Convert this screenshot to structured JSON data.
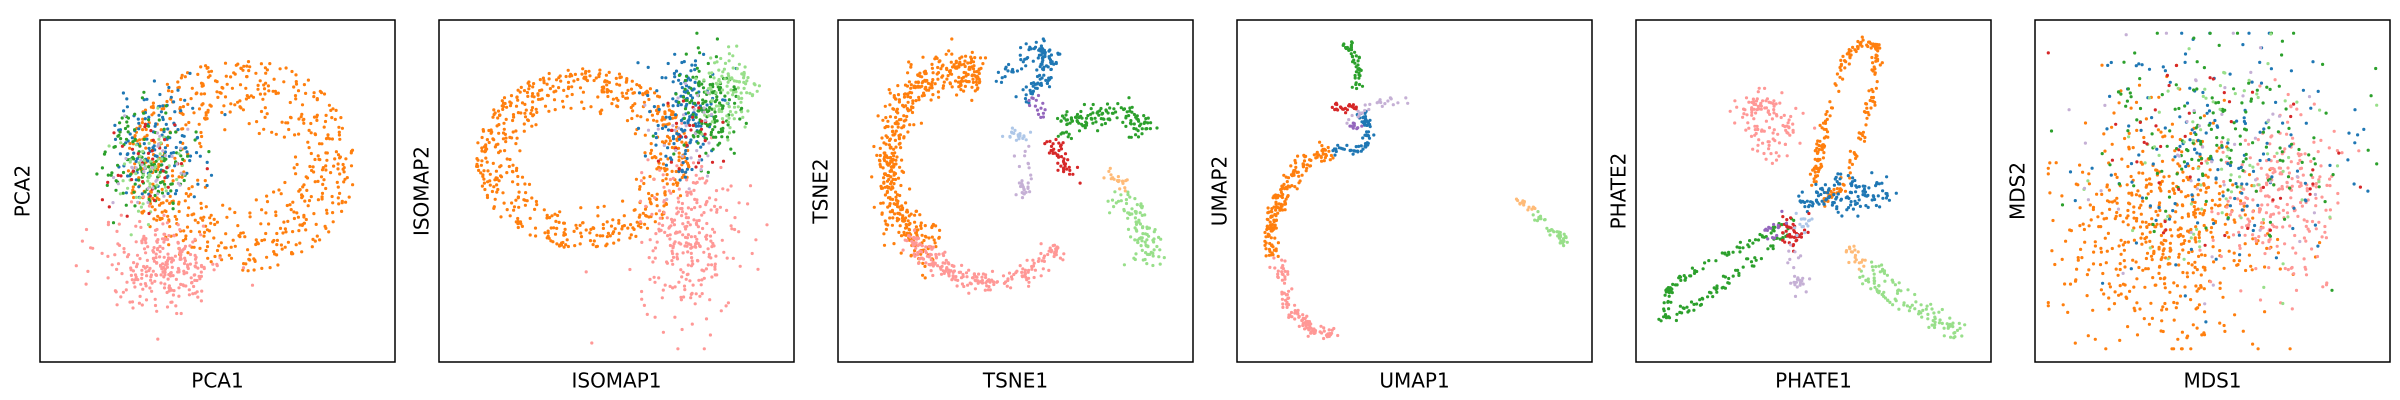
{
  "palette": {
    "orange": "#ff7f0e",
    "pink": "#ff9896",
    "blue": "#1f77b4",
    "green": "#2ca02c",
    "light_green": "#98df8a",
    "red": "#d62728",
    "lavender": "#c5b0d5",
    "purple": "#9467bd",
    "peach": "#ffbb78",
    "light_blue": "#aec7e8"
  },
  "chart_data": [
    {
      "type": "scatter",
      "xlabel": "PCA1",
      "ylabel": "PCA2",
      "grid": false,
      "ticks": false,
      "clusters": [
        {
          "color": "orange",
          "shape": "ring",
          "cx": 0.57,
          "cy": 0.58,
          "rx": 0.34,
          "ry": 0.33,
          "inner": 0.32,
          "n": 1200
        },
        {
          "color": "pink",
          "shape": "blob",
          "cx": 0.34,
          "cy": 0.27,
          "rx": 0.18,
          "ry": 0.14,
          "n": 550
        },
        {
          "color": "blue",
          "shape": "blob",
          "cx": 0.32,
          "cy": 0.65,
          "rx": 0.14,
          "ry": 0.17,
          "n": 260
        },
        {
          "color": "green",
          "shape": "blob",
          "cx": 0.29,
          "cy": 0.6,
          "rx": 0.13,
          "ry": 0.16,
          "n": 260
        },
        {
          "color": "light_green",
          "shape": "blob",
          "cx": 0.3,
          "cy": 0.56,
          "rx": 0.12,
          "ry": 0.14,
          "n": 110
        },
        {
          "color": "red",
          "shape": "blob",
          "cx": 0.3,
          "cy": 0.58,
          "rx": 0.13,
          "ry": 0.16,
          "n": 70
        },
        {
          "color": "lavender",
          "shape": "blob",
          "cx": 0.3,
          "cy": 0.55,
          "rx": 0.12,
          "ry": 0.15,
          "n": 70
        }
      ]
    },
    {
      "type": "scatter",
      "xlabel": "ISOMAP1",
      "ylabel": "ISOMAP2",
      "grid": false,
      "ticks": false,
      "clusters": [
        {
          "color": "orange",
          "shape": "ring",
          "cx": 0.4,
          "cy": 0.6,
          "rx": 0.32,
          "ry": 0.28,
          "inner": 0.5,
          "n": 1200
        },
        {
          "color": "pink",
          "shape": "blob",
          "cx": 0.72,
          "cy": 0.35,
          "rx": 0.15,
          "ry": 0.23,
          "n": 550
        },
        {
          "color": "blue",
          "shape": "blob",
          "cx": 0.7,
          "cy": 0.74,
          "rx": 0.1,
          "ry": 0.2,
          "n": 300
        },
        {
          "color": "green",
          "shape": "blob",
          "cx": 0.77,
          "cy": 0.76,
          "rx": 0.1,
          "ry": 0.18,
          "n": 300
        },
        {
          "color": "light_green",
          "shape": "blob",
          "cx": 0.84,
          "cy": 0.8,
          "rx": 0.09,
          "ry": 0.14,
          "n": 220
        },
        {
          "color": "red",
          "shape": "blob",
          "cx": 0.7,
          "cy": 0.68,
          "rx": 0.09,
          "ry": 0.15,
          "n": 60
        },
        {
          "color": "lavender",
          "shape": "blob",
          "cx": 0.72,
          "cy": 0.66,
          "rx": 0.1,
          "ry": 0.16,
          "n": 60
        }
      ]
    },
    {
      "type": "scatter",
      "xlabel": "TSNE1",
      "ylabel": "TSNE2",
      "grid": false,
      "ticks": false,
      "clusters": [
        {
          "color": "orange",
          "shape": "arc",
          "cx": 0.33,
          "cy": 0.58,
          "rx": 0.21,
          "ry": 0.3,
          "from": 70,
          "to": 250,
          "thick": 0.12,
          "n": 1000
        },
        {
          "color": "pink",
          "shape": "arc",
          "cx": 0.42,
          "cy": 0.52,
          "rx": 0.27,
          "ry": 0.3,
          "from": 210,
          "to": 320,
          "thick": 0.06,
          "n": 450
        },
        {
          "color": "blue",
          "shape": "path",
          "points": [
            [
              0.45,
              0.84
            ],
            [
              0.52,
              0.9
            ],
            [
              0.58,
              0.95
            ],
            [
              0.6,
              0.9
            ],
            [
              0.58,
              0.84
            ],
            [
              0.53,
              0.8
            ]
          ],
          "spread": 0.015,
          "n": 240
        },
        {
          "color": "green",
          "shape": "path",
          "points": [
            [
              0.63,
              0.7
            ],
            [
              0.7,
              0.73
            ],
            [
              0.78,
              0.74
            ],
            [
              0.86,
              0.72
            ],
            [
              0.91,
              0.69
            ]
          ],
          "spread": 0.02,
          "n": 260
        },
        {
          "color": "light_green",
          "shape": "path",
          "points": [
            [
              0.82,
              0.48
            ],
            [
              0.86,
              0.42
            ],
            [
              0.89,
              0.35
            ],
            [
              0.9,
              0.3
            ]
          ],
          "spread": 0.022,
          "n": 200
        },
        {
          "color": "peach",
          "shape": "path",
          "points": [
            [
              0.78,
              0.55
            ],
            [
              0.83,
              0.52
            ]
          ],
          "spread": 0.012,
          "n": 40
        },
        {
          "color": "red",
          "shape": "path",
          "points": [
            [
              0.6,
              0.65
            ],
            [
              0.64,
              0.6
            ],
            [
              0.67,
              0.55
            ]
          ],
          "spread": 0.015,
          "n": 90
        },
        {
          "color": "lavender",
          "shape": "path",
          "points": [
            [
              0.53,
              0.62
            ],
            [
              0.53,
              0.53
            ],
            [
              0.52,
              0.48
            ]
          ],
          "spread": 0.012,
          "n": 60
        },
        {
          "color": "light_blue",
          "shape": "path",
          "points": [
            [
              0.48,
              0.68
            ],
            [
              0.53,
              0.66
            ]
          ],
          "spread": 0.012,
          "n": 40
        },
        {
          "color": "purple",
          "shape": "path",
          "points": [
            [
              0.55,
              0.78
            ],
            [
              0.58,
              0.78
            ],
            [
              0.57,
              0.72
            ]
          ],
          "spread": 0.01,
          "n": 30
        }
      ]
    },
    {
      "type": "scatter",
      "xlabel": "UMAP1",
      "ylabel": "UMAP2",
      "grid": false,
      "ticks": false,
      "clusters": [
        {
          "color": "orange",
          "shape": "path",
          "points": [
            [
              0.25,
              0.63
            ],
            [
              0.16,
              0.58
            ],
            [
              0.1,
              0.48
            ],
            [
              0.07,
              0.4
            ],
            [
              0.07,
              0.31
            ]
          ],
          "spread": 0.013,
          "n": 380
        },
        {
          "color": "pink",
          "shape": "path",
          "points": [
            [
              0.09,
              0.28
            ],
            [
              0.12,
              0.15
            ],
            [
              0.18,
              0.08
            ],
            [
              0.26,
              0.05
            ]
          ],
          "spread": 0.012,
          "n": 220
        },
        {
          "color": "blue",
          "shape": "path",
          "points": [
            [
              0.26,
              0.63
            ],
            [
              0.35,
              0.63
            ],
            [
              0.36,
              0.7
            ],
            [
              0.34,
              0.75
            ]
          ],
          "spread": 0.008,
          "n": 140
        },
        {
          "color": "green",
          "shape": "path",
          "points": [
            [
              0.3,
              0.96
            ],
            [
              0.33,
              0.9
            ],
            [
              0.33,
              0.82
            ]
          ],
          "spread": 0.008,
          "n": 90
        },
        {
          "color": "red",
          "shape": "path",
          "points": [
            [
              0.25,
              0.76
            ],
            [
              0.32,
              0.76
            ]
          ],
          "spread": 0.008,
          "n": 50
        },
        {
          "color": "lavender",
          "shape": "path",
          "points": [
            [
              0.3,
              0.72
            ],
            [
              0.38,
              0.77
            ],
            [
              0.48,
              0.78
            ]
          ],
          "spread": 0.007,
          "n": 50
        },
        {
          "color": "purple",
          "shape": "path",
          "points": [
            [
              0.31,
              0.71
            ],
            [
              0.34,
              0.7
            ]
          ],
          "spread": 0.006,
          "n": 20
        },
        {
          "color": "peach",
          "shape": "path",
          "points": [
            [
              0.81,
              0.47
            ],
            [
              0.86,
              0.44
            ]
          ],
          "spread": 0.006,
          "n": 30
        },
        {
          "color": "light_green",
          "shape": "path",
          "points": [
            [
              0.86,
              0.44
            ],
            [
              0.92,
              0.37
            ],
            [
              0.95,
              0.34
            ]
          ],
          "spread": 0.008,
          "n": 80
        }
      ]
    },
    {
      "type": "scatter",
      "xlabel": "PHATE1",
      "ylabel": "PHATE2",
      "grid": false,
      "ticks": false,
      "clusters": [
        {
          "color": "orange",
          "shape": "path",
          "points": [
            [
              0.5,
              0.52
            ],
            [
              0.52,
              0.63
            ],
            [
              0.55,
              0.76
            ],
            [
              0.59,
              0.9
            ],
            [
              0.64,
              0.96
            ],
            [
              0.69,
              0.95
            ],
            [
              0.68,
              0.82
            ],
            [
              0.64,
              0.66
            ],
            [
              0.59,
              0.52
            ],
            [
              0.54,
              0.47
            ]
          ],
          "spread": 0.008,
          "n": 420
        },
        {
          "color": "pink",
          "shape": "path",
          "points": [
            [
              0.41,
              0.6
            ],
            [
              0.35,
              0.66
            ],
            [
              0.3,
              0.75
            ],
            [
              0.33,
              0.78
            ],
            [
              0.41,
              0.73
            ],
            [
              0.45,
              0.66
            ]
          ],
          "spread": 0.02,
          "n": 240
        },
        {
          "color": "blue",
          "shape": "path",
          "points": [
            [
              0.46,
              0.46
            ],
            [
              0.55,
              0.47
            ],
            [
              0.63,
              0.46
            ],
            [
              0.71,
              0.5
            ],
            [
              0.61,
              0.53
            ],
            [
              0.52,
              0.5
            ]
          ],
          "spread": 0.018,
          "n": 260
        },
        {
          "color": "green",
          "shape": "path",
          "points": [
            [
              0.44,
              0.42
            ],
            [
              0.31,
              0.34
            ],
            [
              0.17,
              0.27
            ],
            [
              0.07,
              0.2
            ],
            [
              0.05,
              0.1
            ],
            [
              0.16,
              0.15
            ],
            [
              0.3,
              0.27
            ],
            [
              0.43,
              0.38
            ]
          ],
          "spread": 0.008,
          "n": 300
        },
        {
          "color": "light_green",
          "shape": "path",
          "points": [
            [
              0.64,
              0.25
            ],
            [
              0.72,
              0.17
            ],
            [
              0.83,
              0.1
            ],
            [
              0.94,
              0.06
            ],
            [
              0.86,
              0.12
            ],
            [
              0.75,
              0.2
            ],
            [
              0.67,
              0.28
            ]
          ],
          "spread": 0.012,
          "n": 230
        },
        {
          "color": "peach",
          "shape": "path",
          "points": [
            [
              0.6,
              0.33
            ],
            [
              0.65,
              0.26
            ]
          ],
          "spread": 0.008,
          "n": 40
        },
        {
          "color": "red",
          "shape": "blob",
          "cx": 0.44,
          "cy": 0.37,
          "rx": 0.04,
          "ry": 0.05,
          "n": 80
        },
        {
          "color": "lavender",
          "shape": "path",
          "points": [
            [
              0.43,
              0.32
            ],
            [
              0.45,
              0.24
            ],
            [
              0.47,
              0.18
            ]
          ],
          "spread": 0.012,
          "n": 50
        },
        {
          "color": "purple",
          "shape": "blob",
          "cx": 0.38,
          "cy": 0.38,
          "rx": 0.04,
          "ry": 0.03,
          "n": 30
        },
        {
          "color": "light_blue",
          "shape": "blob",
          "cx": 0.47,
          "cy": 0.4,
          "rx": 0.03,
          "ry": 0.03,
          "n": 30
        }
      ]
    },
    {
      "type": "scatter",
      "xlabel": "MDS1",
      "ylabel": "MDS2",
      "grid": false,
      "ticks": false,
      "clusters": [
        {
          "color": "orange",
          "shape": "blob",
          "cx": 0.35,
          "cy": 0.38,
          "rx": 0.3,
          "ry": 0.35,
          "n": 1100
        },
        {
          "color": "pink",
          "shape": "blob",
          "cx": 0.7,
          "cy": 0.48,
          "rx": 0.18,
          "ry": 0.27,
          "n": 500
        },
        {
          "color": "blue",
          "shape": "blob",
          "cx": 0.52,
          "cy": 0.62,
          "rx": 0.38,
          "ry": 0.38,
          "n": 320
        },
        {
          "color": "green",
          "shape": "blob",
          "cx": 0.5,
          "cy": 0.68,
          "rx": 0.36,
          "ry": 0.3,
          "n": 320
        },
        {
          "color": "light_green",
          "shape": "blob",
          "cx": 0.55,
          "cy": 0.6,
          "rx": 0.36,
          "ry": 0.35,
          "n": 160
        },
        {
          "color": "red",
          "shape": "blob",
          "cx": 0.48,
          "cy": 0.6,
          "rx": 0.38,
          "ry": 0.38,
          "n": 90
        },
        {
          "color": "lavender",
          "shape": "blob",
          "cx": 0.5,
          "cy": 0.6,
          "rx": 0.38,
          "ry": 0.38,
          "n": 90
        }
      ]
    }
  ]
}
